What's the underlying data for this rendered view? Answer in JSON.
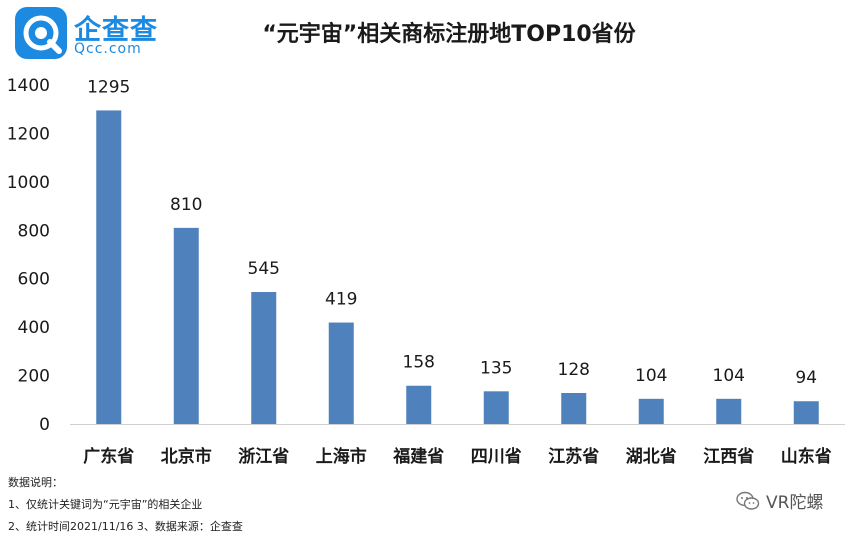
{
  "logo": {
    "name_cn": "企查查",
    "name_en": "Qcc.com"
  },
  "chart_data": {
    "type": "bar",
    "title": "“元宇宙”相关商标注册地TOP10省份",
    "categories": [
      "广东省",
      "北京市",
      "浙江省",
      "上海市",
      "福建省",
      "四川省",
      "江苏省",
      "湖北省",
      "江西省",
      "山东省"
    ],
    "values": [
      1295,
      810,
      545,
      419,
      158,
      135,
      128,
      104,
      104,
      94
    ],
    "ylim": [
      0,
      1400
    ],
    "yticks": [
      "0",
      "200",
      "400",
      "600",
      "800",
      "1000",
      "1200",
      "1400"
    ],
    "grid": false,
    "bar_color": "#4f81bd",
    "xlabel": "",
    "ylabel": ""
  },
  "notes": {
    "heading": "数据说明：",
    "line1": "1、仅统计关键词为“元宇宙”的相关企业",
    "line2": "2、统计时间2021/11/16  3、数据来源：企查查"
  },
  "watermark": {
    "text": "VR陀螺",
    "icon": "wechat-icon"
  }
}
